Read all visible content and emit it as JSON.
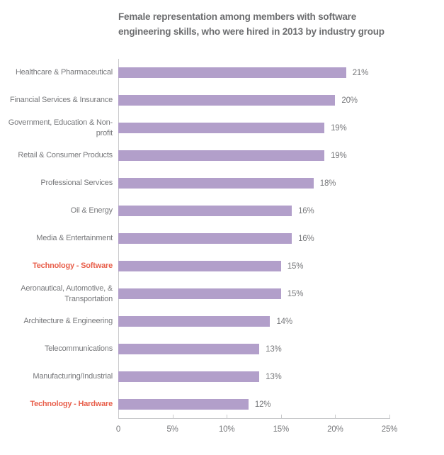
{
  "colors": {
    "bar": "#b29fca",
    "highlight": "#e8604c",
    "text": "#77787b",
    "title": "#6d6e70",
    "axis": "#c9cacc"
  },
  "chart_data": {
    "type": "bar",
    "orientation": "horizontal",
    "title": "Female representation among members with software engineering skills, who were hired in 2013 by industry group",
    "categories": [
      "Healthcare & Pharmaceutical",
      "Financial Services & Insurance",
      "Government, Education & Non-profit",
      "Retail & Consumer Products",
      "Professional Services",
      "Oil & Energy",
      "Media & Entertainment",
      "Technology - Software",
      "Aeronautical, Automotive, & Transportation",
      "Architecture & Engineering",
      "Telecommunications",
      "Manufacturing/Industrial",
      "Technology - Hardware"
    ],
    "values": [
      21,
      20,
      19,
      19,
      18,
      16,
      16,
      15,
      15,
      14,
      13,
      13,
      12
    ],
    "value_labels": [
      "21%",
      "20%",
      "19%",
      "19%",
      "18%",
      "16%",
      "16%",
      "15%",
      "15%",
      "14%",
      "13%",
      "13%",
      "12%"
    ],
    "highlighted_categories": [
      "Technology - Software",
      "Technology - Hardware"
    ],
    "xlabel": "",
    "ylabel": "",
    "xlim": [
      0,
      25
    ],
    "x_ticks": [
      "0",
      "5%",
      "10%",
      "15%",
      "20%",
      "25%"
    ],
    "x_tick_values": [
      0,
      5,
      10,
      15,
      20,
      25
    ],
    "grid": false,
    "legend": false
  }
}
